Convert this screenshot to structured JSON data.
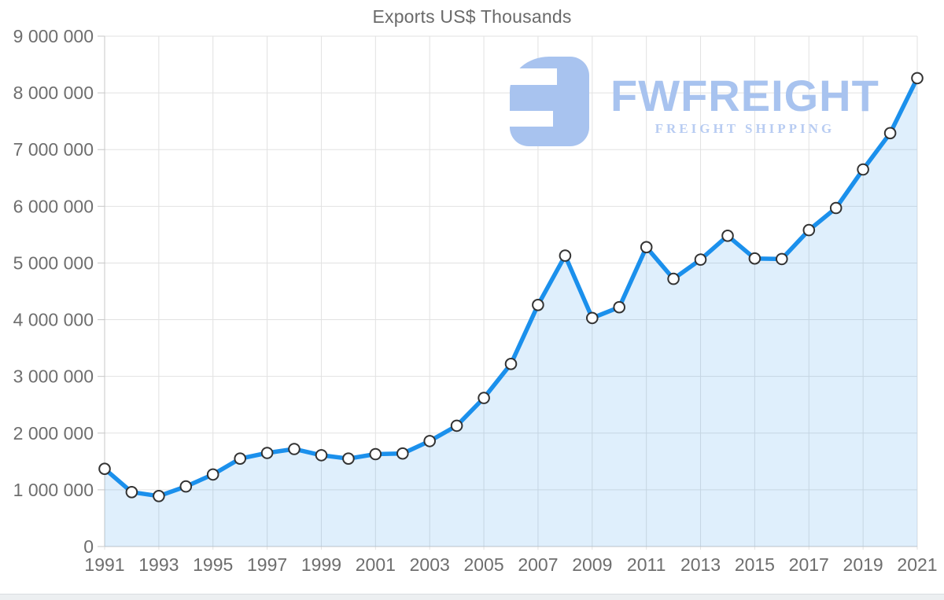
{
  "chart_data": {
    "type": "area",
    "title": "Exports US$ Thousands",
    "x": [
      1991,
      1992,
      1993,
      1994,
      1995,
      1996,
      1997,
      1998,
      1999,
      2000,
      2001,
      2002,
      2003,
      2004,
      2005,
      2006,
      2007,
      2008,
      2009,
      2010,
      2011,
      2012,
      2013,
      2014,
      2015,
      2016,
      2017,
      2018,
      2019,
      2020,
      2021
    ],
    "values": [
      1370000,
      960000,
      890000,
      1060000,
      1270000,
      1550000,
      1650000,
      1720000,
      1610000,
      1550000,
      1630000,
      1640000,
      1860000,
      2130000,
      2620000,
      3220000,
      4260000,
      5130000,
      4030000,
      4220000,
      5280000,
      4720000,
      5060000,
      5480000,
      5080000,
      5070000,
      5580000,
      5970000,
      6650000,
      7290000,
      8260000
    ],
    "xlabel": "",
    "ylabel": "",
    "ylim": [
      0,
      9000000
    ],
    "ytick_step": 1000000,
    "ytick_labels": [
      "0",
      "1 000 000",
      "2 000 000",
      "3 000 000",
      "4 000 000",
      "5 000 000",
      "6 000 000",
      "7 000 000",
      "8 000 000",
      "9 000 000"
    ],
    "xtick_labels": [
      "1991",
      "1993",
      "1995",
      "1997",
      "1999",
      "2001",
      "2003",
      "2005",
      "2007",
      "2009",
      "2011",
      "2013",
      "2015",
      "2017",
      "2019",
      "2021"
    ],
    "grid": "on",
    "legend": "none",
    "colors": {
      "line": "#1b90ec",
      "area_fill": "rgba(27,144,236,0.14)",
      "marker_fill": "#ffffff",
      "marker_stroke": "#333333",
      "gridline": "#e2e2e2",
      "axis_line": "#c7c7c7",
      "tick_text": "#6e6e6e",
      "title_text": "#6a6a6a"
    }
  },
  "watermark": {
    "brand": "FWFREIGHT",
    "tagline": "FREIGHT SHIPPING",
    "icon": "fwfreight-logo-icon",
    "color": "#a8c3ef"
  }
}
